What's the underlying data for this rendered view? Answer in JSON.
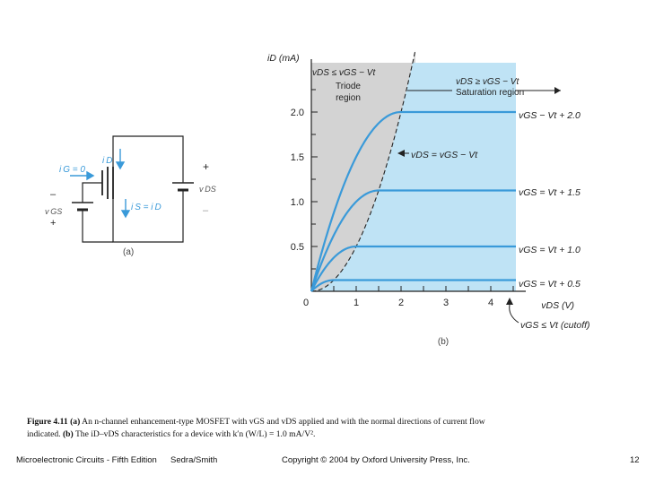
{
  "figure": {
    "panel_a": {
      "label": "(a)",
      "ig": "i G = 0",
      "id": "i D",
      "is": "i S = i D",
      "vds": "v DS",
      "vgs": "v GS",
      "plus_top": "+",
      "minus_top": "–",
      "plus_side": "+",
      "minus_side": "–"
    },
    "panel_b": {
      "label": "(b)",
      "y_axis_label": "iD (mA)",
      "x_axis_label": "vDS (V)",
      "triode_title": "vDS ≤ vGS − Vt",
      "triode_label": "Triode region",
      "sat_title": "vDS ≥ vGS − Vt",
      "sat_label": "Saturation region",
      "boundary_label": "vDS = vGS − Vt",
      "cutoff_label": "vGS ≤ Vt (cutoff)"
    }
  },
  "chart_data": {
    "type": "line",
    "xlabel": "vDS (V)",
    "ylabel": "iD (mA)",
    "xlim": [
      0,
      4.8
    ],
    "ylim": [
      0,
      2.4
    ],
    "x_ticks": [
      "0",
      "1",
      "2",
      "3",
      "4"
    ],
    "y_ticks": [
      "0.5",
      "1.0",
      "1.5",
      "2.0"
    ],
    "series": [
      {
        "name": "vGS − Vt + 2.0",
        "overdrive": 2.0,
        "saturation_current": 2.0
      },
      {
        "name": "vGS = Vt + 1.5",
        "overdrive": 1.5,
        "saturation_current": 1.125
      },
      {
        "name": "vGS = Vt + 1.0",
        "overdrive": 1.0,
        "saturation_current": 0.5
      },
      {
        "name": "vGS = Vt + 0.5",
        "overdrive": 0.5,
        "saturation_current": 0.125
      }
    ],
    "boundary": "iD = (1/2) k′n (W/L) vDS²",
    "colors": {
      "curve": "#3a9ad9",
      "saturation_fill": "#bfe3f5",
      "triode_fill": "#d3d3d3"
    }
  },
  "caption": {
    "fig_num": "Figure 4.11",
    "part_a_tag": "(a)",
    "part_a_text": "An n-channel enhancement-type MOSFET with vGS and vDS applied and with the normal directions of current flow indicated.",
    "part_b_tag": "(b)",
    "part_b_text": "The iD–vDS characteristics for a device with k′n (W/L) = 1.0 mA/V²."
  },
  "footer": {
    "book": "Microelectronic Circuits - Fifth Edition",
    "authors": "Sedra/Smith",
    "copyright": "Copyright © 2004 by Oxford University Press, Inc.",
    "page": "12"
  }
}
